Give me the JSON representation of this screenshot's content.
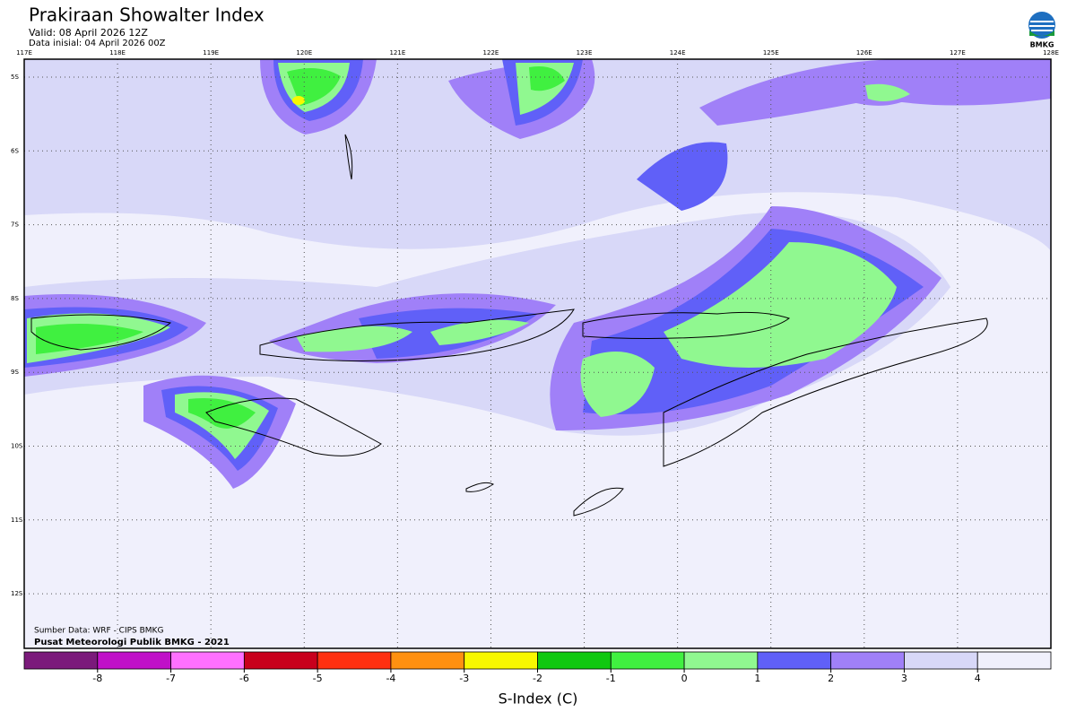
{
  "header": {
    "title": "Prakiraan Showalter Index",
    "valid": "Valid: 08 April 2026 12Z",
    "init": "Data inisial: 04 April 2026 00Z",
    "logo": "BMKG"
  },
  "axes": {
    "lon_labels": [
      "117E",
      "118E",
      "119E",
      "120E",
      "121E",
      "122E",
      "123E",
      "124E",
      "125E",
      "126E",
      "127E",
      "128E"
    ],
    "lat_labels": [
      "5S",
      "6S",
      "7S",
      "8S",
      "9S",
      "10S",
      "11S",
      "12S"
    ]
  },
  "footer": {
    "source": "Sumber Data: WRF - CIPS BMKG",
    "credit": "Pusat Meteorologi Publik BMKG - 2021"
  },
  "colorbar": {
    "label": "S-Index (C)",
    "ticks": [
      -8,
      -7,
      -6,
      -5,
      -4,
      -3,
      -2,
      -1,
      0,
      1,
      2,
      3,
      4
    ],
    "colors": [
      "#7b1a7b",
      "#c010c8",
      "#ff70ff",
      "#c8001c",
      "#ff3010",
      "#ff9010",
      "#f8f800",
      "#10c810",
      "#40f040",
      "#90f890",
      "#6060f8",
      "#a080f8",
      "#d8d8f8",
      "#f0f0fc"
    ]
  }
}
